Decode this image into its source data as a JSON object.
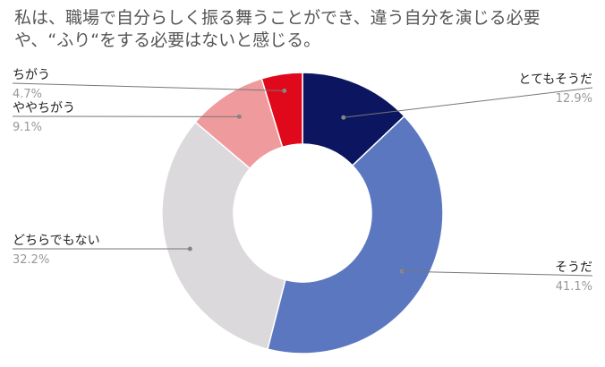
{
  "title": "私は、職場で自分らしく振る舞うことができ、違う自分を演じる必要や、“ふり“をする必要はないと感じる。",
  "chart_data": {
    "type": "pie",
    "donut": true,
    "start": "top",
    "direction": "clockwise",
    "categories": [
      "とてもそうだ",
      "そうだ",
      "どちらでもない",
      "ややちがう",
      "ちがう"
    ],
    "values": [
      12.9,
      41.1,
      32.2,
      9.1,
      4.7
    ],
    "value_labels": [
      "12.9%",
      "41.1%",
      "32.2%",
      "9.1%",
      "4.7%"
    ],
    "colors": [
      "#0b1560",
      "#5b77c0",
      "#dcd9dc",
      "#ef9a9d",
      "#e0081b"
    ],
    "legend": "callout labels"
  }
}
